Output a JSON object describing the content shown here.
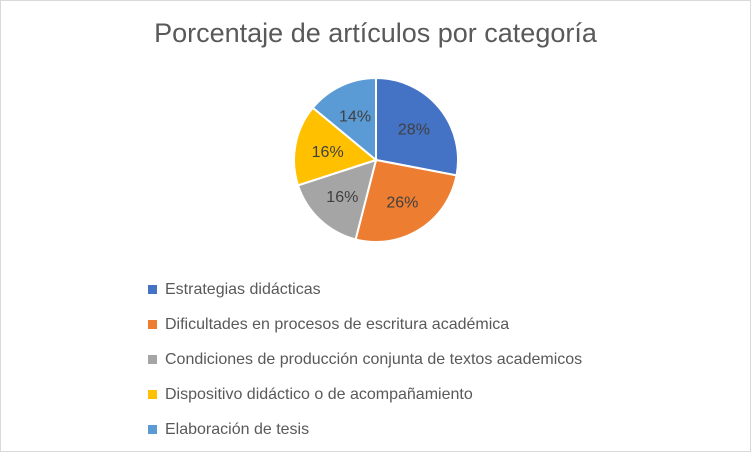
{
  "chart_data": {
    "type": "pie",
    "title": "Porcentaje de artículos por categoría",
    "categories": [
      "Estrategias didácticas",
      "Dificultades en procesos de escritura académica",
      "Condiciones de producción conjunta de textos academicos",
      "Dispositivo didáctico o de acompañamiento",
      "Elaboración de tesis"
    ],
    "values": [
      28,
      26,
      16,
      16,
      14
    ],
    "data_labels": [
      "28%",
      "26%",
      "16%",
      "16%",
      "14%"
    ],
    "colors": [
      "#4472c4",
      "#ed7d31",
      "#a5a5a5",
      "#ffc000",
      "#5b9bd5"
    ],
    "legend_position": "bottom",
    "start_angle": "top, clockwise"
  }
}
